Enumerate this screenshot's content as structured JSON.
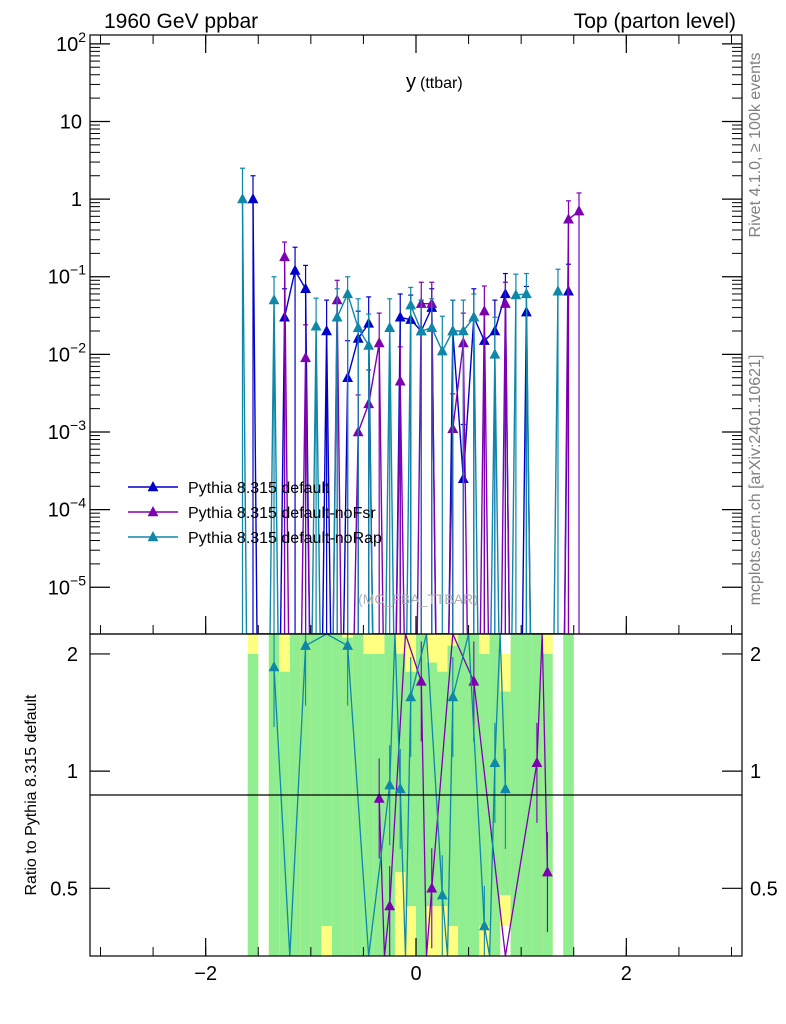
{
  "header": {
    "left": "1960 GeV ppbar",
    "right": "Top (parton level)"
  },
  "side_labels": {
    "upper": "Rivet 4.1.0, ≥ 100k events",
    "lower": "mcplots.cern.ch [arXiv:2401.10621]"
  },
  "watermark": "(MC_FBA_TTBAR)",
  "chart_data": {
    "type": "line",
    "title": "y (ttbar)",
    "title_main": "y",
    "title_sub": "(ttbar)",
    "xlabel": "",
    "ylabel_ratio": "Ratio to Pythia 8.315 default",
    "xlim": [
      -3.1,
      3.1
    ],
    "ylim": [
      2.5e-06,
      130
    ],
    "yscale": "log",
    "ratio_ylim": [
      0.335,
      2.25
    ],
    "ratio_yscale": "log",
    "x_ticks": [
      "−2",
      "0",
      "2"
    ],
    "x_tick_values": [
      -2,
      0,
      2
    ],
    "y_ticks": [
      {
        "label": "10",
        "exp": "2",
        "value": 100
      },
      {
        "label": "10",
        "exp": "",
        "value": 10
      },
      {
        "label": "1",
        "exp": "",
        "value": 1
      },
      {
        "label": "10",
        "exp": "−1",
        "value": 0.1
      },
      {
        "label": "10",
        "exp": "−2",
        "value": 0.01
      },
      {
        "label": "10",
        "exp": "−3",
        "value": 0.001
      },
      {
        "label": "10",
        "exp": "−4",
        "value": 0.0001
      },
      {
        "label": "10",
        "exp": "−5",
        "value": 1e-05
      }
    ],
    "ratio_ticks": [
      {
        "label": "2",
        "value": 2
      },
      {
        "label": "1",
        "value": 1
      },
      {
        "label": "0.5",
        "value": 0.5
      }
    ],
    "legend": {
      "placement": "lower-left"
    },
    "series": [
      {
        "name": "Pythia 8.315 default",
        "color": "#0000cc",
        "x": [
          -1.55,
          -1.25,
          -1.15,
          -1.05,
          -0.85,
          -0.65,
          -0.55,
          -0.45,
          -0.15,
          -0.05,
          0.05,
          0.15,
          0.35,
          0.45,
          0.55,
          0.65,
          0.75,
          0.85,
          1.05,
          1.45
        ],
        "y": [
          1.0,
          0.03,
          0.12,
          0.07,
          0.02,
          0.005,
          0.016,
          0.025,
          0.03,
          0.028,
          0.02,
          0.04,
          0.02,
          0.00025,
          0.03,
          0.015,
          0.02,
          0.06,
          0.035,
          0.065
        ],
        "err_up": [
          1.0,
          0.04,
          0.12,
          0.07,
          0.03,
          0.01,
          0.02,
          0.03,
          0.03,
          0.03,
          0.03,
          0.03,
          0.03,
          0.001,
          0.04,
          0.02,
          0.03,
          0.05,
          0.04,
          0.08
        ]
      },
      {
        "name": "Pythia 8.315 default-noFsr",
        "color": "#7e00b0",
        "x": [
          -1.25,
          -1.05,
          -0.75,
          -0.55,
          -0.45,
          -0.35,
          -0.15,
          0.05,
          0.15,
          0.35,
          0.45,
          0.65,
          0.85,
          1.45,
          1.55
        ],
        "y": [
          0.18,
          0.009,
          0.05,
          0.001,
          0.0023,
          0.014,
          0.0045,
          0.045,
          0.045,
          0.0011,
          0.014,
          0.036,
          0.045,
          0.55,
          0.7
        ],
        "err_up": [
          0.1,
          0.015,
          0.04,
          0.002,
          0.004,
          0.02,
          0.008,
          0.04,
          0.04,
          0.002,
          0.02,
          0.04,
          0.04,
          0.4,
          0.5
        ]
      },
      {
        "name": "Pythia 8.315 default-noRap",
        "color": "#0e87a8",
        "x": [
          -1.65,
          -1.35,
          -0.95,
          -0.75,
          -0.65,
          -0.55,
          -0.45,
          -0.25,
          -0.05,
          0.05,
          0.15,
          0.25,
          0.35,
          0.45,
          0.55,
          0.75,
          0.95,
          1.05,
          1.35
        ],
        "y": [
          1.0,
          0.05,
          0.023,
          0.03,
          0.06,
          0.022,
          0.013,
          0.022,
          0.043,
          0.02,
          0.022,
          0.011,
          0.02,
          0.02,
          0.03,
          0.01,
          0.058,
          0.06,
          0.065
        ],
        "err_up": [
          1.5,
          0.05,
          0.03,
          0.04,
          0.04,
          0.03,
          0.02,
          0.03,
          0.03,
          0.03,
          0.03,
          0.02,
          0.03,
          0.03,
          0.03,
          0.02,
          0.05,
          0.05,
          0.06
        ]
      }
    ],
    "ratio_points": [
      {
        "series": "Pythia 8.315 default-noFsr",
        "x": -0.35,
        "y": 0.85
      },
      {
        "series": "Pythia 8.315 default-noFsr",
        "x": 0.05,
        "y": 1.7
      },
      {
        "series": "Pythia 8.315 default-noFsr",
        "x": 0.15,
        "y": 0.5
      },
      {
        "series": "Pythia 8.315 default-noFsr",
        "x": 0.55,
        "y": 1.7
      },
      {
        "series": "Pythia 8.315 default-noFsr",
        "x": 1.15,
        "y": 1.05
      },
      {
        "series": "Pythia 8.315 default-noFsr",
        "x": 1.25,
        "y": 0.55
      },
      {
        "series": "Pythia 8.315 default-noFsr",
        "x": -0.25,
        "y": 0.45
      },
      {
        "series": "Pythia 8.315 default-noRap",
        "x": -1.35,
        "y": 1.85
      },
      {
        "series": "Pythia 8.315 default-noRap",
        "x": -0.15,
        "y": 0.9
      },
      {
        "series": "Pythia 8.315 default-noRap",
        "x": -0.25,
        "y": 0.92
      },
      {
        "series": "Pythia 8.315 default-noRap",
        "x": -0.05,
        "y": 1.55
      },
      {
        "series": "Pythia 8.315 default-noRap",
        "x": 0.35,
        "y": 1.55
      },
      {
        "series": "Pythia 8.315 default-noRap",
        "x": 0.75,
        "y": 1.05
      },
      {
        "series": "Pythia 8.315 default-noRap",
        "x": 0.85,
        "y": 0.9
      },
      {
        "series": "Pythia 8.315 default-noRap",
        "x": 0.25,
        "y": 0.48
      },
      {
        "series": "Pythia 8.315 default-noRap",
        "x": 0.65,
        "y": 0.4
      },
      {
        "series": "Pythia 8.315 default-noRap",
        "x": -1.05,
        "y": 2.1
      },
      {
        "series": "Pythia 8.315 default-noRap",
        "x": -0.65,
        "y": 2.1
      }
    ],
    "mc_band_bins": [
      {
        "x0": -1.6,
        "x1": -1.5,
        "lo": 0.335,
        "hi": 2.0,
        "outer_lo": 0.335,
        "outer_hi": 2.25
      },
      {
        "x0": -1.4,
        "x1": -1.3,
        "lo": 0.335,
        "hi": 2.25,
        "outer_lo": 0.335,
        "outer_hi": 2.25
      },
      {
        "x0": -1.3,
        "x1": -1.2,
        "lo": 0.335,
        "hi": 1.8,
        "outer_lo": 0.335,
        "outer_hi": 2.25
      },
      {
        "x0": -1.2,
        "x1": -1.1,
        "lo": 0.335,
        "hi": 2.25,
        "outer_lo": 0.335,
        "outer_hi": 2.25
      },
      {
        "x0": -1.1,
        "x1": -1.0,
        "lo": 0.335,
        "hi": 2.25,
        "outer_lo": 0.335,
        "outer_hi": 2.25
      },
      {
        "x0": -1.0,
        "x1": -0.9,
        "lo": 0.335,
        "hi": 2.25,
        "outer_lo": 0.335,
        "outer_hi": 2.25
      },
      {
        "x0": -0.9,
        "x1": -0.8,
        "lo": 0.4,
        "hi": 2.25,
        "outer_lo": 0.335,
        "outer_hi": 2.25
      },
      {
        "x0": -0.8,
        "x1": -0.7,
        "lo": 0.335,
        "hi": 2.25,
        "outer_lo": 0.335,
        "outer_hi": 2.25
      },
      {
        "x0": -0.7,
        "x1": -0.6,
        "lo": 0.335,
        "hi": 2.2,
        "outer_lo": 0.335,
        "outer_hi": 2.25
      },
      {
        "x0": -0.6,
        "x1": -0.5,
        "lo": 0.335,
        "hi": 2.25,
        "outer_lo": 0.335,
        "outer_hi": 2.25
      },
      {
        "x0": -0.5,
        "x1": -0.4,
        "lo": 0.335,
        "hi": 2.0,
        "outer_lo": 0.335,
        "outer_hi": 2.25
      },
      {
        "x0": -0.4,
        "x1": -0.3,
        "lo": 0.335,
        "hi": 2.0,
        "outer_lo": 0.335,
        "outer_hi": 2.25
      },
      {
        "x0": -0.3,
        "x1": -0.2,
        "lo": 0.335,
        "hi": 2.25,
        "outer_lo": 0.335,
        "outer_hi": 2.25
      },
      {
        "x0": -0.2,
        "x1": -0.1,
        "lo": 0.55,
        "hi": 2.0,
        "outer_lo": 0.335,
        "outer_hi": 2.25
      },
      {
        "x0": -0.1,
        "x1": 0.0,
        "lo": 0.45,
        "hi": 1.8,
        "outer_lo": 0.335,
        "outer_hi": 2.25
      },
      {
        "x0": 0.0,
        "x1": 0.1,
        "lo": 0.335,
        "hi": 2.25,
        "outer_lo": 0.335,
        "outer_hi": 2.25
      },
      {
        "x0": 0.1,
        "x1": 0.2,
        "lo": 0.45,
        "hi": 1.9,
        "outer_lo": 0.335,
        "outer_hi": 2.25
      },
      {
        "x0": 0.2,
        "x1": 0.3,
        "lo": 0.45,
        "hi": 1.8,
        "outer_lo": 0.335,
        "outer_hi": 2.25
      },
      {
        "x0": 0.3,
        "x1": 0.4,
        "lo": 0.4,
        "hi": 2.1,
        "outer_lo": 0.335,
        "outer_hi": 2.25
      },
      {
        "x0": 0.4,
        "x1": 0.5,
        "lo": 0.335,
        "hi": 2.25,
        "outer_lo": 0.335,
        "outer_hi": 2.25
      },
      {
        "x0": 0.5,
        "x1": 0.6,
        "lo": 0.335,
        "hi": 2.25,
        "outer_lo": 0.335,
        "outer_hi": 2.25
      },
      {
        "x0": 0.6,
        "x1": 0.7,
        "lo": 0.4,
        "hi": 2.0,
        "outer_lo": 0.335,
        "outer_hi": 2.25
      },
      {
        "x0": 0.7,
        "x1": 0.8,
        "lo": 0.335,
        "hi": 2.25,
        "outer_lo": 0.335,
        "outer_hi": 2.25
      },
      {
        "x0": 0.8,
        "x1": 0.9,
        "lo": 0.48,
        "hi": 1.6,
        "outer_lo": 0.4,
        "outer_hi": 2.0
      },
      {
        "x0": 0.9,
        "x1": 1.0,
        "lo": 0.335,
        "hi": 2.25,
        "outer_lo": 0.335,
        "outer_hi": 2.25
      },
      {
        "x0": 1.0,
        "x1": 1.1,
        "lo": 0.335,
        "hi": 2.25,
        "outer_lo": 0.335,
        "outer_hi": 2.25
      },
      {
        "x0": 1.1,
        "x1": 1.2,
        "lo": 0.335,
        "hi": 2.25,
        "outer_lo": 0.335,
        "outer_hi": 2.25
      },
      {
        "x0": 1.2,
        "x1": 1.3,
        "lo": 0.335,
        "hi": 2.0,
        "outer_lo": 0.335,
        "outer_hi": 2.25
      },
      {
        "x0": 1.4,
        "x1": 1.5,
        "lo": 0.335,
        "hi": 2.25,
        "outer_lo": 0.335,
        "outer_hi": 2.25
      }
    ]
  }
}
